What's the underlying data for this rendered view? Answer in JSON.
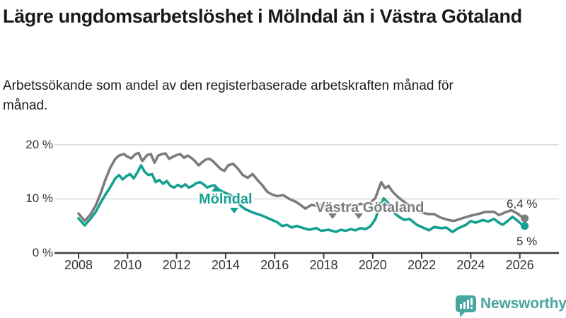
{
  "header": {
    "title": "Lägre ungdomsarbetslöshet i Mölndal än i Västra Götaland",
    "subtitle": "Arbetssökande som andel av den registerbaserade arbetskraften månad för månad."
  },
  "chart_data": {
    "type": "line",
    "title": "Lägre ungdomsarbetslöshet i Mölndal än i Västra Götaland",
    "subtitle": "Arbetssökande som andel av den registerbaserade arbetskraften månad för månad.",
    "unit": "%",
    "grid": "horizontal",
    "ylim": [
      0,
      21.3
    ],
    "xlim": [
      2008,
      2026.2
    ],
    "x_ticks": [
      {
        "value": 2008,
        "label": "2008"
      },
      {
        "value": 2010,
        "label": "2010"
      },
      {
        "value": 2012,
        "label": "2012"
      },
      {
        "value": 2014,
        "label": "2014"
      },
      {
        "value": 2016,
        "label": "2016"
      },
      {
        "value": 2018,
        "label": "2018"
      },
      {
        "value": 2020,
        "label": "2020"
      },
      {
        "value": 2022,
        "label": "2022"
      },
      {
        "value": 2024,
        "label": "2024"
      },
      {
        "value": 2026,
        "label": "2026"
      }
    ],
    "y_ticks": [
      {
        "value": 0,
        "label": "0 %"
      },
      {
        "value": 10,
        "label": "10 %"
      },
      {
        "value": 20,
        "label": "20 %"
      }
    ],
    "series": [
      {
        "name": "Västra Götaland",
        "color": "#7c7c7c",
        "end_label": "6,4 %",
        "end_value": 6.4,
        "points": [
          [
            2008.0,
            7.3
          ],
          [
            2008.25,
            5.9
          ],
          [
            2008.5,
            7.2
          ],
          [
            2008.7,
            8.8
          ],
          [
            2008.9,
            11.0
          ],
          [
            2009.1,
            13.6
          ],
          [
            2009.3,
            15.8
          ],
          [
            2009.5,
            17.4
          ],
          [
            2009.65,
            18.0
          ],
          [
            2009.85,
            18.3
          ],
          [
            2010.0,
            17.8
          ],
          [
            2010.15,
            17.5
          ],
          [
            2010.3,
            18.2
          ],
          [
            2010.45,
            18.5
          ],
          [
            2010.6,
            17.0
          ],
          [
            2010.8,
            18.1
          ],
          [
            2010.95,
            18.3
          ],
          [
            2011.1,
            16.7
          ],
          [
            2011.25,
            18.0
          ],
          [
            2011.4,
            18.3
          ],
          [
            2011.55,
            18.4
          ],
          [
            2011.7,
            17.4
          ],
          [
            2011.85,
            17.8
          ],
          [
            2012.0,
            18.1
          ],
          [
            2012.15,
            18.3
          ],
          [
            2012.3,
            17.6
          ],
          [
            2012.45,
            18.0
          ],
          [
            2012.6,
            17.6
          ],
          [
            2012.75,
            17.0
          ],
          [
            2012.9,
            16.2
          ],
          [
            2013.05,
            16.8
          ],
          [
            2013.2,
            17.3
          ],
          [
            2013.35,
            17.4
          ],
          [
            2013.5,
            16.9
          ],
          [
            2013.65,
            16.2
          ],
          [
            2013.8,
            15.5
          ],
          [
            2013.95,
            15.2
          ],
          [
            2014.1,
            16.2
          ],
          [
            2014.3,
            16.5
          ],
          [
            2014.5,
            15.6
          ],
          [
            2014.7,
            14.4
          ],
          [
            2014.9,
            13.9
          ],
          [
            2015.1,
            14.6
          ],
          [
            2015.3,
            13.5
          ],
          [
            2015.5,
            12.5
          ],
          [
            2015.7,
            11.3
          ],
          [
            2015.9,
            10.8
          ],
          [
            2016.1,
            10.5
          ],
          [
            2016.35,
            10.7
          ],
          [
            2016.6,
            10.0
          ],
          [
            2016.85,
            9.5
          ],
          [
            2017.05,
            8.9
          ],
          [
            2017.25,
            8.2
          ],
          [
            2017.5,
            8.9
          ],
          [
            2017.7,
            8.7
          ],
          [
            2017.9,
            8.9
          ],
          [
            2018.1,
            8.6
          ],
          [
            2018.3,
            8.2
          ],
          [
            2018.5,
            8.7
          ],
          [
            2018.7,
            8.4
          ],
          [
            2018.9,
            8.7
          ],
          [
            2019.1,
            9.0
          ],
          [
            2019.3,
            8.7
          ],
          [
            2019.5,
            9.1
          ],
          [
            2019.7,
            8.9
          ],
          [
            2019.9,
            9.3
          ],
          [
            2020.1,
            10.1
          ],
          [
            2020.35,
            13.1
          ],
          [
            2020.5,
            12.0
          ],
          [
            2020.65,
            12.4
          ],
          [
            2020.8,
            11.4
          ],
          [
            2020.95,
            10.7
          ],
          [
            2021.15,
            9.9
          ],
          [
            2021.35,
            9.2
          ],
          [
            2021.55,
            8.8
          ],
          [
            2021.8,
            7.9
          ],
          [
            2022.0,
            7.5
          ],
          [
            2022.25,
            7.2
          ],
          [
            2022.5,
            7.2
          ],
          [
            2022.8,
            6.5
          ],
          [
            2023.1,
            6.1
          ],
          [
            2023.3,
            5.9
          ],
          [
            2023.5,
            6.2
          ],
          [
            2023.7,
            6.5
          ],
          [
            2024.0,
            6.9
          ],
          [
            2024.3,
            7.2
          ],
          [
            2024.6,
            7.6
          ],
          [
            2024.95,
            7.6
          ],
          [
            2025.15,
            7.0
          ],
          [
            2025.4,
            7.5
          ],
          [
            2025.65,
            7.9
          ],
          [
            2025.9,
            7.3
          ],
          [
            2026.05,
            6.8
          ],
          [
            2026.2,
            6.4
          ]
        ]
      },
      {
        "name": "Mölndal",
        "color": "#14a090",
        "end_label": "5 %",
        "end_value": 5.0,
        "points": [
          [
            2008.0,
            6.4
          ],
          [
            2008.25,
            5.1
          ],
          [
            2008.5,
            6.4
          ],
          [
            2008.7,
            7.6
          ],
          [
            2008.9,
            9.3
          ],
          [
            2009.1,
            10.8
          ],
          [
            2009.3,
            12.2
          ],
          [
            2009.5,
            13.8
          ],
          [
            2009.65,
            14.4
          ],
          [
            2009.8,
            13.6
          ],
          [
            2009.95,
            14.2
          ],
          [
            2010.1,
            14.6
          ],
          [
            2010.25,
            13.8
          ],
          [
            2010.4,
            14.9
          ],
          [
            2010.55,
            16.2
          ],
          [
            2010.7,
            15.0
          ],
          [
            2010.85,
            14.4
          ],
          [
            2011.0,
            14.6
          ],
          [
            2011.15,
            13.1
          ],
          [
            2011.3,
            13.5
          ],
          [
            2011.45,
            12.8
          ],
          [
            2011.6,
            13.3
          ],
          [
            2011.75,
            12.4
          ],
          [
            2011.9,
            12.1
          ],
          [
            2012.05,
            12.6
          ],
          [
            2012.2,
            12.2
          ],
          [
            2012.35,
            12.7
          ],
          [
            2012.5,
            12.1
          ],
          [
            2012.65,
            12.4
          ],
          [
            2012.8,
            12.9
          ],
          [
            2012.95,
            13.1
          ],
          [
            2013.1,
            12.7
          ],
          [
            2013.25,
            12.1
          ],
          [
            2013.4,
            12.4
          ],
          [
            2013.55,
            12.5
          ],
          [
            2013.7,
            11.8
          ],
          [
            2013.85,
            11.4
          ],
          [
            2014.0,
            11.1
          ],
          [
            2014.2,
            10.7
          ],
          [
            2014.35,
            10.1
          ],
          [
            2014.5,
            9.3
          ],
          [
            2014.65,
            8.6
          ],
          [
            2014.8,
            8.1
          ],
          [
            2014.95,
            7.8
          ],
          [
            2015.1,
            7.5
          ],
          [
            2015.3,
            7.2
          ],
          [
            2015.5,
            6.9
          ],
          [
            2015.7,
            6.5
          ],
          [
            2015.9,
            6.1
          ],
          [
            2016.1,
            5.7
          ],
          [
            2016.3,
            5.0
          ],
          [
            2016.5,
            5.2
          ],
          [
            2016.7,
            4.7
          ],
          [
            2016.9,
            5.0
          ],
          [
            2017.1,
            4.7
          ],
          [
            2017.4,
            4.3
          ],
          [
            2017.7,
            4.6
          ],
          [
            2017.9,
            4.1
          ],
          [
            2018.2,
            4.3
          ],
          [
            2018.5,
            3.9
          ],
          [
            2018.7,
            4.3
          ],
          [
            2018.9,
            4.1
          ],
          [
            2019.1,
            4.4
          ],
          [
            2019.3,
            4.2
          ],
          [
            2019.5,
            4.6
          ],
          [
            2019.7,
            4.4
          ],
          [
            2019.9,
            4.9
          ],
          [
            2020.1,
            6.2
          ],
          [
            2020.3,
            8.8
          ],
          [
            2020.45,
            10.1
          ],
          [
            2020.6,
            9.4
          ],
          [
            2020.75,
            8.6
          ],
          [
            2020.9,
            7.3
          ],
          [
            2021.1,
            6.6
          ],
          [
            2021.3,
            6.1
          ],
          [
            2021.5,
            6.3
          ],
          [
            2021.8,
            5.2
          ],
          [
            2022.0,
            4.8
          ],
          [
            2022.3,
            4.2
          ],
          [
            2022.5,
            4.8
          ],
          [
            2022.8,
            4.6
          ],
          [
            2023.0,
            4.7
          ],
          [
            2023.25,
            3.9
          ],
          [
            2023.5,
            4.6
          ],
          [
            2023.8,
            5.2
          ],
          [
            2024.0,
            5.9
          ],
          [
            2024.2,
            5.6
          ],
          [
            2024.5,
            6.1
          ],
          [
            2024.7,
            5.8
          ],
          [
            2024.95,
            6.3
          ],
          [
            2025.15,
            5.6
          ],
          [
            2025.3,
            5.2
          ],
          [
            2025.5,
            5.9
          ],
          [
            2025.7,
            6.7
          ],
          [
            2025.9,
            6.0
          ],
          [
            2026.05,
            5.4
          ],
          [
            2026.2,
            5.0
          ]
        ]
      }
    ],
    "colors": {
      "gridline": "#dcdcdc",
      "axis": "#3d3d3d",
      "tick_text": "#333333",
      "annotation_text": "#333333"
    }
  },
  "footer": {
    "brand": "Newsworthy",
    "brand_color": "#48a6a1"
  }
}
